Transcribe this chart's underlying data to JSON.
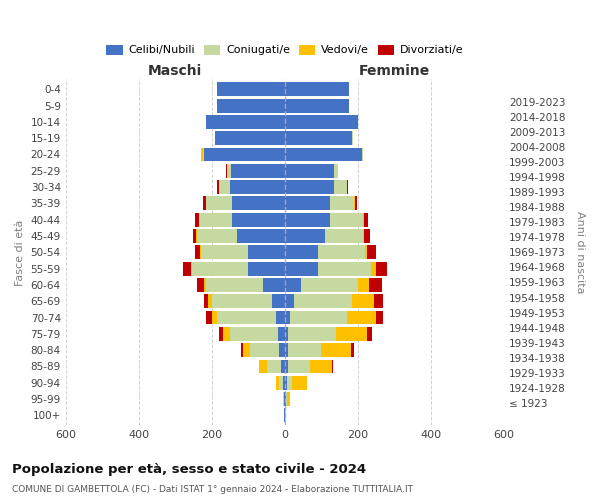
{
  "age_groups": [
    "100+",
    "95-99",
    "90-94",
    "85-89",
    "80-84",
    "75-79",
    "70-74",
    "65-69",
    "60-64",
    "55-59",
    "50-54",
    "45-49",
    "40-44",
    "35-39",
    "30-34",
    "25-29",
    "20-24",
    "15-19",
    "10-14",
    "5-9",
    "0-4"
  ],
  "birth_years": [
    "≤ 1923",
    "1924-1928",
    "1929-1933",
    "1934-1938",
    "1939-1943",
    "1944-1948",
    "1949-1953",
    "1954-1958",
    "1959-1963",
    "1964-1968",
    "1969-1973",
    "1974-1978",
    "1979-1983",
    "1984-1988",
    "1989-1993",
    "1994-1998",
    "1999-2003",
    "2004-2008",
    "2009-2013",
    "2014-2018",
    "2019-2023"
  ],
  "male_celibi": [
    2,
    2,
    5,
    10,
    15,
    20,
    25,
    35,
    60,
    100,
    100,
    130,
    145,
    145,
    150,
    148,
    220,
    190,
    215,
    185,
    185
  ],
  "male_coniugati": [
    1,
    2,
    10,
    40,
    80,
    130,
    160,
    165,
    155,
    155,
    130,
    110,
    90,
    70,
    30,
    10,
    5,
    2,
    1,
    1,
    1
  ],
  "male_vedovi": [
    0,
    1,
    10,
    20,
    20,
    20,
    15,
    10,
    5,
    3,
    2,
    2,
    1,
    1,
    0,
    0,
    5,
    0,
    0,
    0,
    0
  ],
  "male_divorziati": [
    0,
    0,
    0,
    0,
    5,
    10,
    15,
    10,
    20,
    20,
    15,
    10,
    10,
    8,
    5,
    2,
    0,
    0,
    0,
    0,
    0
  ],
  "female_celibi": [
    1,
    2,
    5,
    10,
    10,
    10,
    15,
    25,
    45,
    90,
    90,
    110,
    125,
    125,
    135,
    135,
    210,
    185,
    200,
    175,
    175
  ],
  "female_coniugati": [
    1,
    3,
    15,
    60,
    90,
    130,
    155,
    160,
    155,
    145,
    130,
    105,
    90,
    65,
    35,
    10,
    5,
    2,
    1,
    1,
    1
  ],
  "female_vedovi": [
    2,
    10,
    40,
    60,
    80,
    85,
    80,
    60,
    30,
    15,
    5,
    3,
    2,
    1,
    0,
    0,
    0,
    0,
    0,
    0,
    0
  ],
  "female_divorziati": [
    0,
    0,
    0,
    2,
    10,
    15,
    20,
    25,
    35,
    30,
    25,
    15,
    10,
    8,
    4,
    2,
    0,
    0,
    0,
    0,
    0
  ],
  "colors": {
    "celibi": "#4472c4",
    "coniugati": "#c5d9a0",
    "vedovi": "#ffc000",
    "divorziati": "#c00000"
  },
  "xlim": 600,
  "title": "Popolazione per età, sesso e stato civile - 2024",
  "subtitle": "COMUNE DI GAMBETTOLA (FC) - Dati ISTAT 1° gennaio 2024 - Elaborazione TUTTITALIA.IT",
  "ylabel_left": "Fasce di età",
  "ylabel_right": "Anni di nascita",
  "xlabel_left": "Maschi",
  "xlabel_right": "Femmine",
  "background_color": "#ffffff",
  "grid_color": "#cccccc"
}
